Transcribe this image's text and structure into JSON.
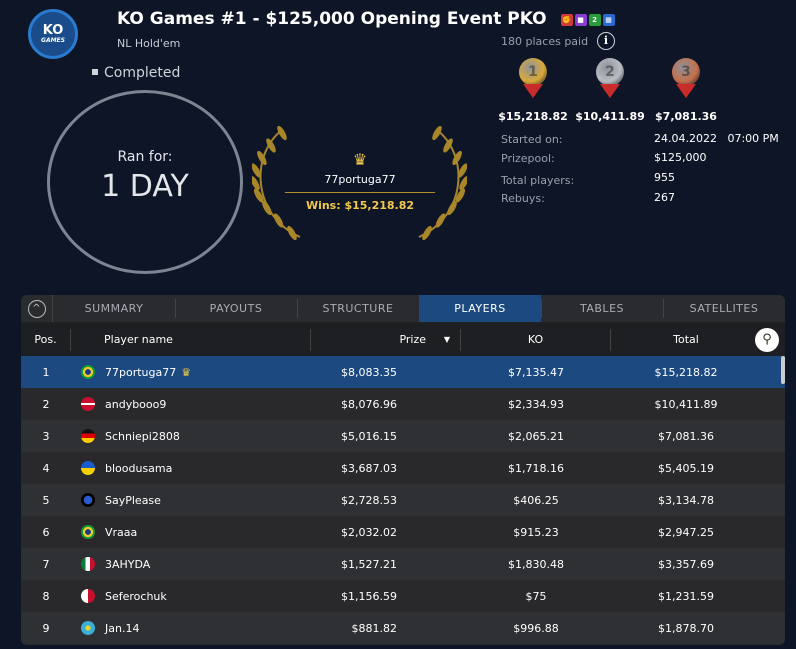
{
  "header": {
    "logo_text": "KO",
    "logo_sub": "GAMES",
    "title": "KO Games #1 - $125,000 Opening Event PKO",
    "badges": [
      "bounty-icon",
      "video-icon",
      "2nd-chance-icon",
      "calendar-icon"
    ],
    "subtitle": "NL Hold'em",
    "status": "Completed"
  },
  "duration": {
    "label": "Ran for:",
    "value": "1 DAY"
  },
  "winner": {
    "name": "77portuga77",
    "wins": "Wins: $15,218.82"
  },
  "payouts": {
    "places_paid": "180 places paid",
    "medals": [
      {
        "place": "1",
        "amount": "$15,218.82",
        "color": "#d9a93a"
      },
      {
        "place": "2",
        "amount": "$10,411.89",
        "color": "#b9bcc2"
      },
      {
        "place": "3",
        "amount": "$7,081.36",
        "color": "#c3704a"
      }
    ]
  },
  "details": [
    {
      "label": "Started on:",
      "value": "24.04.2022   07:00 PM"
    },
    {
      "label": "Prizepool:",
      "value": "$125,000"
    },
    {
      "label": "Total players:",
      "value": "955"
    },
    {
      "label": "Rebuys:",
      "value": "267"
    }
  ],
  "tabs": [
    {
      "label": "SUMMARY"
    },
    {
      "label": "PAYOUTS"
    },
    {
      "label": "STRUCTURE"
    },
    {
      "label": "PLAYERS",
      "active": true
    },
    {
      "label": "TABLES"
    },
    {
      "label": "SATELLITES"
    }
  ],
  "table": {
    "headers": {
      "pos": "Pos.",
      "name": "Player name",
      "prize": "Prize",
      "ko": "KO",
      "total": "Total"
    },
    "rows": [
      {
        "pos": "1",
        "flag": "BR",
        "name": "77portuga77",
        "crown": true,
        "prize": "$8,083.35",
        "ko": "$7,135.47",
        "total": "$15,218.82"
      },
      {
        "pos": "2",
        "flag": "DK",
        "name": "andybooo9",
        "prize": "$8,076.96",
        "ko": "$2,334.93",
        "total": "$10,411.89"
      },
      {
        "pos": "3",
        "flag": "DE",
        "name": "Schniepi2808",
        "prize": "$5,016.15",
        "ko": "$2,065.21",
        "total": "$7,081.36"
      },
      {
        "pos": "4",
        "flag": "UA",
        "name": "bloodusama",
        "prize": "$3,687.03",
        "ko": "$1,718.16",
        "total": "$5,405.19"
      },
      {
        "pos": "5",
        "flag": "WORLD",
        "name": "SayPlease",
        "prize": "$2,728.53",
        "ko": "$406.25",
        "total": "$3,134.78"
      },
      {
        "pos": "6",
        "flag": "BR",
        "name": "Vraaa",
        "prize": "$2,032.02",
        "ko": "$915.23",
        "total": "$2,947.25"
      },
      {
        "pos": "7",
        "flag": "MX",
        "name": "3AHYDA",
        "prize": "$1,527.21",
        "ko": "$1,830.48",
        "total": "$3,357.69"
      },
      {
        "pos": "8",
        "flag": "MT",
        "name": "Seferochuk",
        "prize": "$1,156.59",
        "ko": "$75",
        "total": "$1,231.59"
      },
      {
        "pos": "9",
        "flag": "KZ",
        "name": "Jan.14",
        "prize": "$881.82",
        "ko": "$996.88",
        "total": "$1,878.70"
      }
    ]
  }
}
